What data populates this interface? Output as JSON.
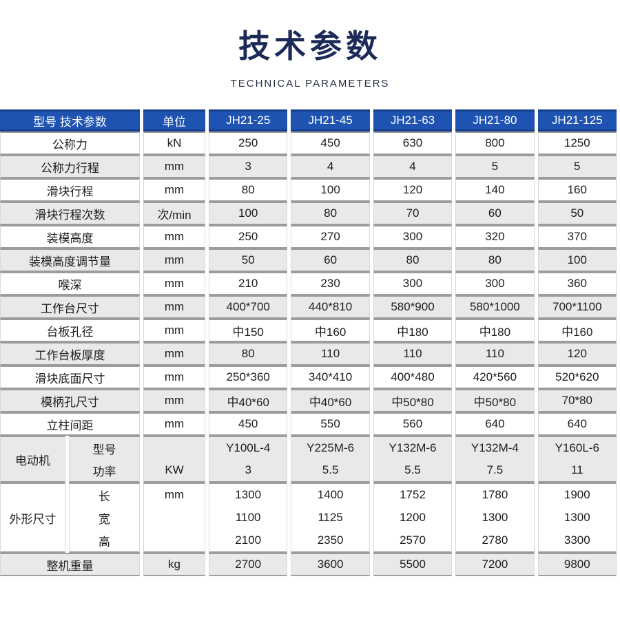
{
  "title": "技术参数",
  "subtitle": "TECHNICAL PARAMETERS",
  "colors": {
    "header_blue": "#1e53b2",
    "header_border_navy": "#153f8c",
    "title_navy": "#1c2a57",
    "row_alt_gray": "#e9e9e9",
    "row_border_gray": "#9c9c9c"
  },
  "table": {
    "header": {
      "col_label": "型号 技术参数",
      "col_unit": "单位",
      "models": [
        "JH21-25",
        "JH21-45",
        "JH21-63",
        "JH21-80",
        "JH21-125"
      ]
    },
    "rows": [
      {
        "label": "公称力",
        "unit": "kN",
        "values": [
          "250",
          "450",
          "630",
          "800",
          "1250"
        ]
      },
      {
        "label": "公称力行程",
        "unit": "mm",
        "values": [
          "3",
          "4",
          "4",
          "5",
          "5"
        ]
      },
      {
        "label": "滑块行程",
        "unit": "mm",
        "values": [
          "80",
          "100",
          "120",
          "140",
          "160"
        ]
      },
      {
        "label": "滑块行程次数",
        "unit": "次/min",
        "values": [
          "100",
          "80",
          "70",
          "60",
          "50"
        ]
      },
      {
        "label": "装模高度",
        "unit": "mm",
        "values": [
          "250",
          "270",
          "300",
          "320",
          "370"
        ]
      },
      {
        "label": "装模高度调节量",
        "unit": "mm",
        "values": [
          "50",
          "60",
          "80",
          "80",
          "100"
        ]
      },
      {
        "label": "喉深",
        "unit": "mm",
        "values": [
          "210",
          "230",
          "300",
          "300",
          "360"
        ]
      },
      {
        "label": "工作台尺寸",
        "unit": "mm",
        "values": [
          "400*700",
          "440*810",
          "580*900",
          "580*1000",
          "700*1100"
        ]
      },
      {
        "label": "台板孔径",
        "unit": "mm",
        "values": [
          "中150",
          "中160",
          "中180",
          "中180",
          "中160"
        ]
      },
      {
        "label": "工作台板厚度",
        "unit": "mm",
        "values": [
          "80",
          "110",
          "110",
          "110",
          "120"
        ]
      },
      {
        "label": "滑块底面尺寸",
        "unit": "mm",
        "values": [
          "250*360",
          "340*410",
          "400*480",
          "420*560",
          "520*620"
        ]
      },
      {
        "label": "模柄孔尺寸",
        "unit": "mm",
        "values": [
          "中40*60",
          "中40*60",
          "中50*80",
          "中50*80",
          "70*80"
        ]
      },
      {
        "label": "立柱间距",
        "unit": "mm",
        "values": [
          "450",
          "550",
          "560",
          "640",
          "640"
        ]
      }
    ],
    "motor": {
      "label": "电动机",
      "sub_rows": [
        {
          "label": "型号",
          "unit": "",
          "values": [
            "Y100L-4",
            "Y225M-6",
            "Y132M-6",
            "Y132M-4",
            "Y160L-6"
          ]
        },
        {
          "label": "功率",
          "unit": "KW",
          "values": [
            "3",
            "5.5",
            "5.5",
            "7.5",
            "11"
          ]
        }
      ]
    },
    "dimensions": {
      "label": "外形尺寸",
      "sub_rows": [
        {
          "label": "长",
          "unit": "mm",
          "values": [
            "1300",
            "1400",
            "1752",
            "1780",
            "1900"
          ]
        },
        {
          "label": "宽",
          "unit": "",
          "values": [
            "1100",
            "1125",
            "1200",
            "1300",
            "1300"
          ]
        },
        {
          "label": "高",
          "unit": "",
          "values": [
            "2100",
            "2350",
            "2570",
            "2780",
            "3300"
          ]
        }
      ]
    },
    "weight": {
      "label": "整机重量",
      "unit": "kg",
      "values": [
        "2700",
        "3600",
        "5500",
        "7200",
        "9800"
      ]
    }
  }
}
